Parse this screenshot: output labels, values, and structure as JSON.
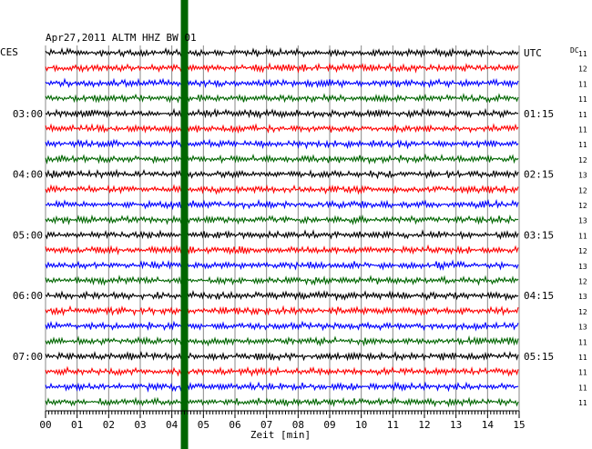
{
  "chart_data": {
    "type": "line",
    "header": "Apr27,2011   ALTM HHZ BW 01",
    "left_axis_title": "CES",
    "right_axis_title": "UTC",
    "dc_label": "DC",
    "xlabel": "Zeit [min]",
    "xlim": [
      0,
      15
    ],
    "x_ticks": [
      "00",
      "01",
      "02",
      "03",
      "04",
      "05",
      "06",
      "07",
      "08",
      "09",
      "10",
      "11",
      "12",
      "13",
      "14",
      "15"
    ],
    "trace_count": 24,
    "trace_colors": [
      "#000000",
      "#ff0000",
      "#0000ff",
      "#006600"
    ],
    "left_time_labels": [
      {
        "trace": 4,
        "label": "03:00"
      },
      {
        "trace": 8,
        "label": "04:00"
      },
      {
        "trace": 12,
        "label": "05:00"
      },
      {
        "trace": 16,
        "label": "06:00"
      },
      {
        "trace": 20,
        "label": "07:00"
      }
    ],
    "right_time_labels": [
      {
        "trace": 0,
        "label": "UTC"
      },
      {
        "trace": 4,
        "label": "01:15"
      },
      {
        "trace": 8,
        "label": "02:15"
      },
      {
        "trace": 12,
        "label": "03:15"
      },
      {
        "trace": 16,
        "label": "04:15"
      },
      {
        "trace": 20,
        "label": "05:15"
      }
    ],
    "dc_values": [
      "11",
      "12",
      "11",
      "11",
      "11",
      "11",
      "11",
      "12",
      "13",
      "12",
      "12",
      "13",
      "11",
      "12",
      "13",
      "12",
      "13",
      "12",
      "13",
      "11",
      "11",
      "11",
      "11",
      "11"
    ],
    "event_marker": {
      "x_minutes": 4.4,
      "color": "#006600"
    }
  }
}
